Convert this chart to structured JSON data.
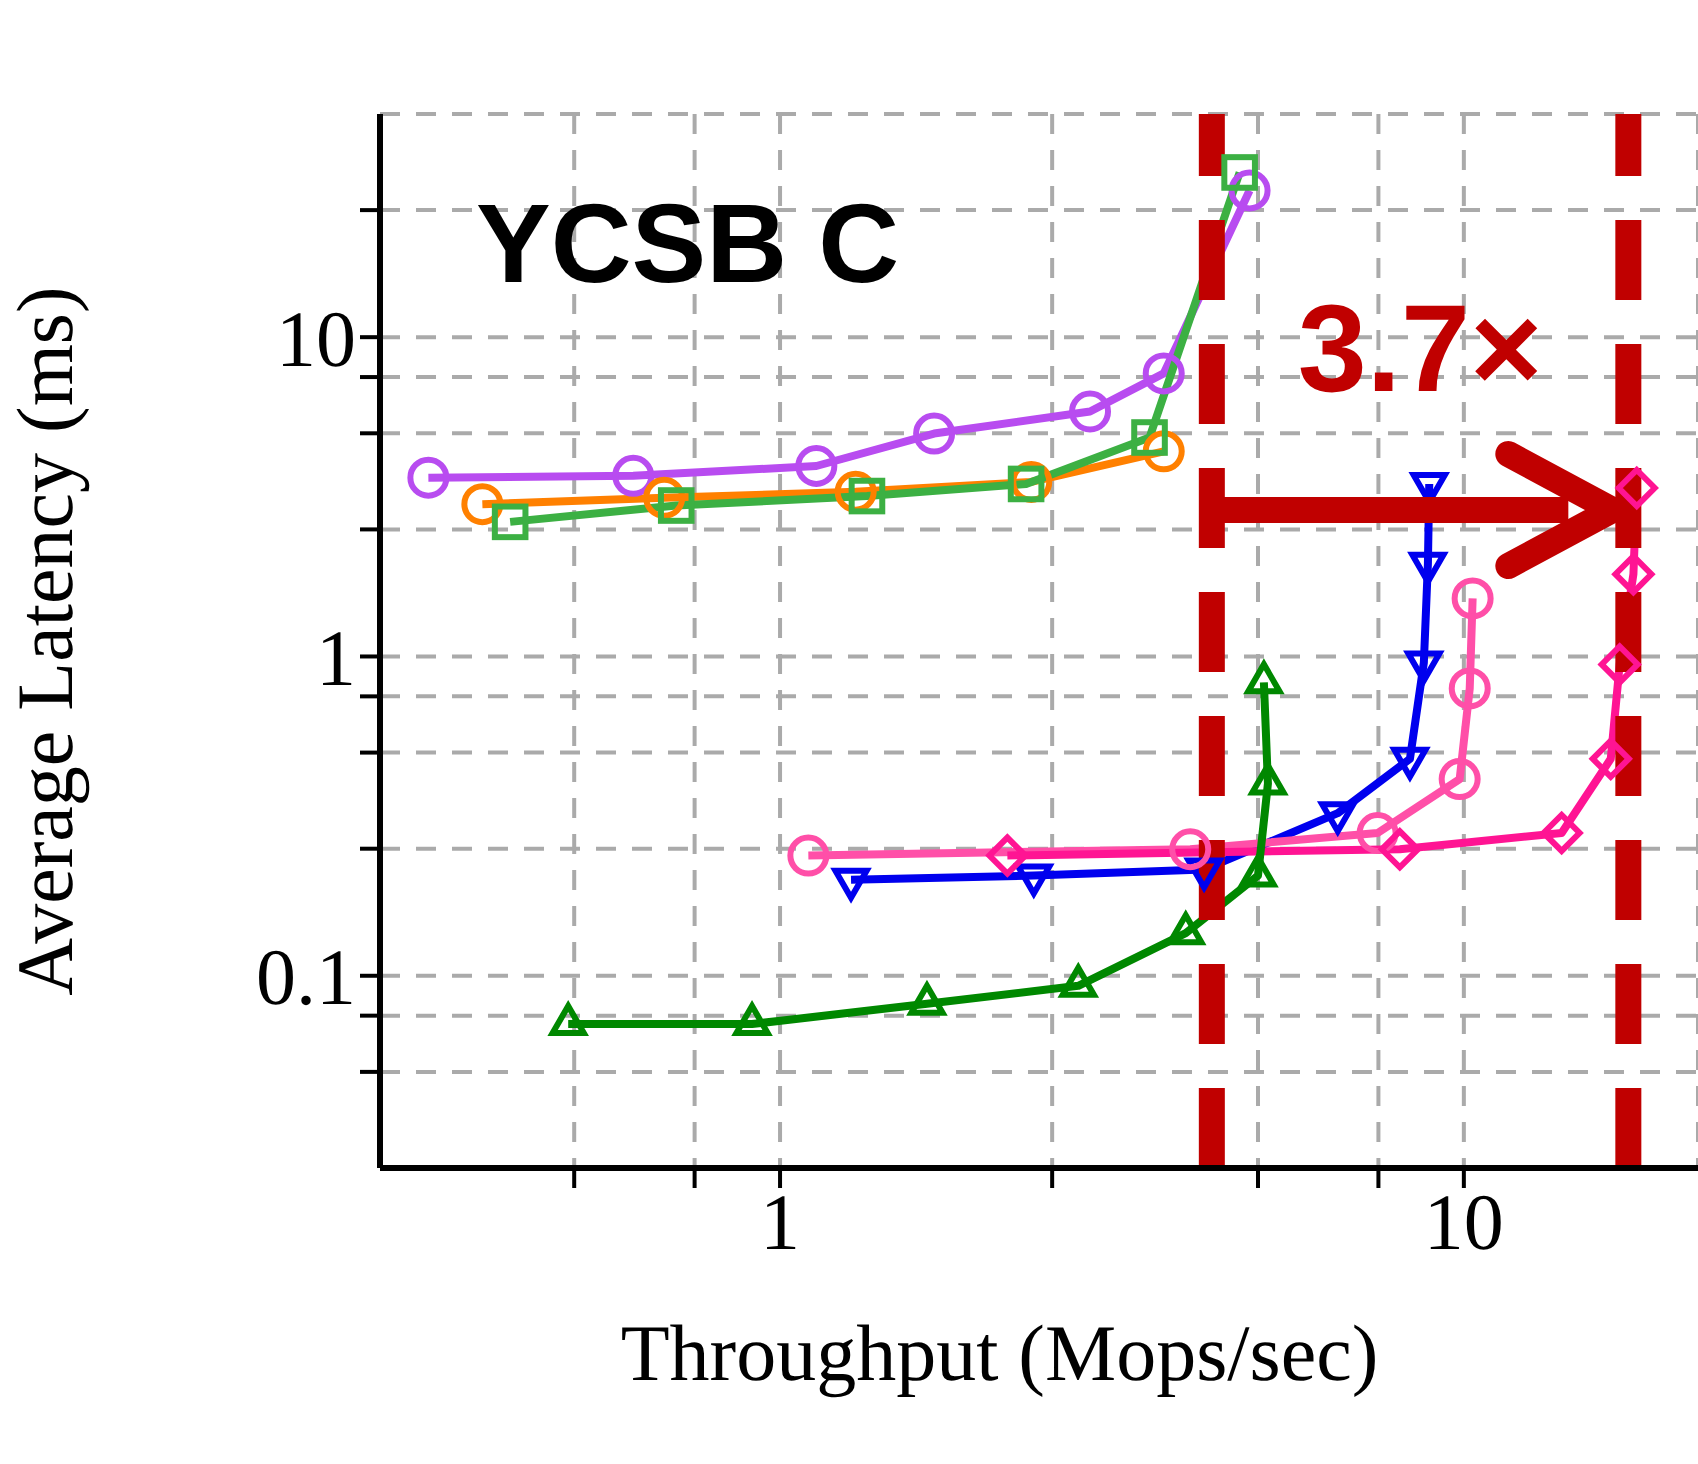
{
  "chart_data": {
    "type": "line",
    "title": "YCSB C",
    "xlabel": "Throughput (Mops/sec)",
    "ylabel": "Average Latency (ms)",
    "log": "xy",
    "grid": true,
    "line_style": "solid",
    "xlim": [
      0.26,
      22
    ],
    "xticks": [
      {
        "value": 0.5,
        "label": null
      },
      {
        "value": 0.75,
        "label": null
      },
      1,
      {
        "value": 2.5,
        "label": null
      },
      {
        "value": 5,
        "label": null
      },
      {
        "value": 7.5,
        "label": null
      },
      10
    ],
    "ylim": [
      0.025,
      50
    ],
    "yticks": [
      {
        "value": 0.05,
        "label": null
      },
      {
        "value": 0.075,
        "label": null
      },
      0.1,
      {
        "value": 0.25,
        "label": null
      },
      {
        "value": 0.5,
        "label": null
      },
      {
        "value": 0.75,
        "label": null
      },
      1,
      {
        "value": 2.5,
        "label": null
      },
      {
        "value": 5,
        "label": null
      },
      {
        "value": 7.5,
        "label": null
      },
      10,
      {
        "value": 25,
        "label": null
      }
    ],
    "series": [
      {
        "color": "#b84cf0",
        "marker": "circle",
        "x": [
          0.306,
          0.61,
          1.13,
          1.68,
          2.84,
          3.64,
          4.86
        ],
        "values": [
          3.63,
          3.68,
          3.95,
          4.99,
          5.85,
          7.7,
          28.8
        ]
      },
      {
        "color": "#ff8000",
        "marker": "circle",
        "x": [
          0.367,
          0.677,
          1.29,
          2.33,
          3.64
        ],
        "values": [
          3.0,
          3.14,
          3.28,
          3.52,
          4.39
        ]
      },
      {
        "color": "#3cb043",
        "marker": "square",
        "x": [
          0.403,
          0.705,
          1.34,
          2.29,
          3.47,
          4.7
        ],
        "values": [
          2.64,
          2.97,
          3.18,
          3.47,
          4.85,
          32.8
        ]
      },
      {
        "color": "#0000ee",
        "marker": "triangle-down",
        "x": [
          1.27,
          2.35,
          4.17,
          6.54,
          8.34,
          8.74,
          8.86,
          8.9
        ],
        "values": [
          0.2,
          0.206,
          0.215,
          0.323,
          0.478,
          0.957,
          1.95,
          3.47
        ]
      },
      {
        "color": "#ff4fa8",
        "marker": "circle",
        "x": [
          1.1,
          3.98,
          7.48,
          9.86,
          10.2,
          10.3
        ],
        "values": [
          0.238,
          0.249,
          0.28,
          0.413,
          0.794,
          1.52
        ]
      },
      {
        "color": "#ff1493",
        "marker": "diamond",
        "x": [
          2.15,
          8.06,
          13.9,
          16.4,
          16.9,
          17.7,
          17.9
        ],
        "values": [
          0.238,
          0.249,
          0.28,
          0.478,
          0.944,
          1.81,
          3.37
        ]
      },
      {
        "color": "#008800",
        "marker": "triangle",
        "x": [
          0.49,
          0.91,
          1.64,
          2.73,
          3.92,
          5.0,
          5.17,
          5.1
        ],
        "values": [
          0.0706,
          0.0706,
          0.0817,
          0.093,
          0.136,
          0.206,
          0.4,
          0.83
        ]
      }
    ],
    "ref_lines": [
      {
        "axis": "x",
        "value": 4.28,
        "label": null,
        "color": "#c00000",
        "line_style": "dashed"
      },
      {
        "axis": "x",
        "value": 17.4,
        "label": null,
        "color": "#c00000",
        "line_style": "dashed"
      }
    ],
    "annotations": [
      "3.7×"
    ]
  }
}
